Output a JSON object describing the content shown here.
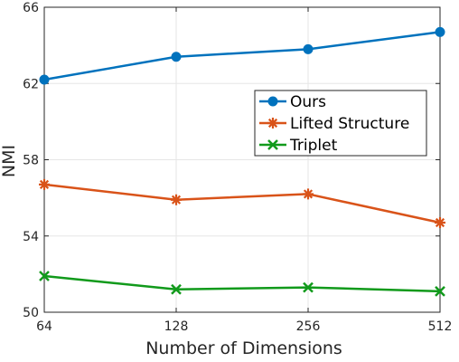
{
  "chart_data": {
    "type": "line",
    "categories": [
      "64",
      "128",
      "256",
      "512"
    ],
    "xlabel": "Number of Dimensions",
    "ylabel": "NMI",
    "ylim": [
      50,
      66
    ],
    "yticks": [
      "50",
      "54",
      "58",
      "62",
      "66"
    ],
    "grid": true,
    "legend": "right",
    "series": [
      {
        "name": "Ours",
        "values": [
          62.2,
          63.4,
          63.8,
          64.7
        ],
        "color": "#0072BD",
        "marker": "circle"
      },
      {
        "name": "Lifted Structure",
        "values": [
          56.7,
          55.9,
          56.2,
          54.7
        ],
        "color": "#D95319",
        "marker": "asterisk"
      },
      {
        "name": "Triplet",
        "values": [
          51.9,
          51.2,
          51.3,
          51.1
        ],
        "color": "#119A1B",
        "marker": "x"
      }
    ]
  }
}
